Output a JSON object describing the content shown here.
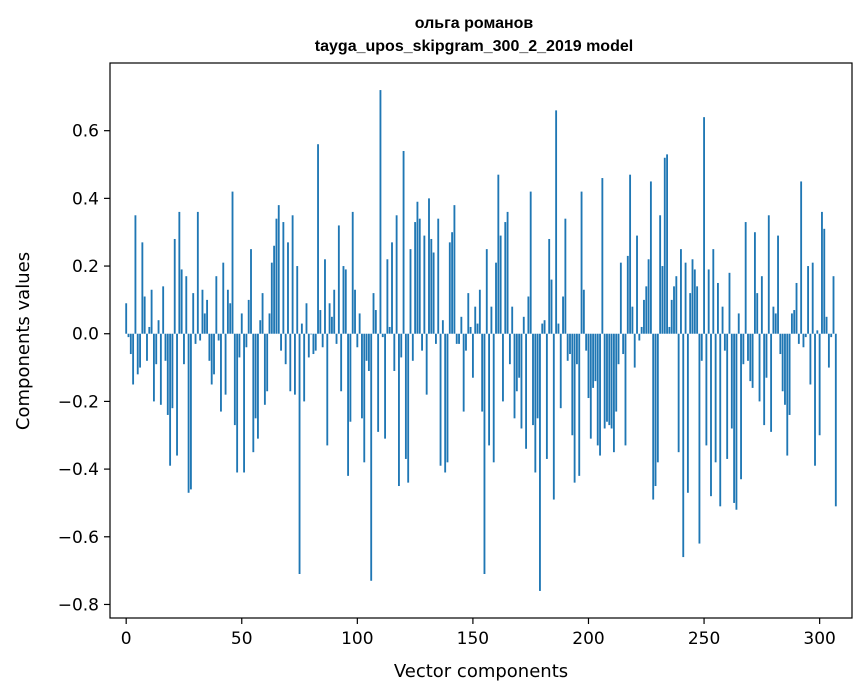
{
  "chart_data": {
    "type": "bar",
    "title_line1": "ольга романов",
    "title_line2": "tayga_upos_skipgram_300_2_2019 model",
    "xlabel": "Vector components",
    "ylabel": "Components values",
    "xlim": [
      -7,
      314
    ],
    "ylim": [
      -0.84,
      0.8
    ],
    "xticks": [
      0,
      50,
      100,
      150,
      200,
      250,
      300
    ],
    "yticks": [
      -0.8,
      -0.6,
      -0.4,
      -0.2,
      0.0,
      0.2,
      0.4,
      0.6
    ],
    "ytick_labels": [
      "−0.8",
      "−0.6",
      "−0.4",
      "−0.2",
      "0.0",
      "0.2",
      "0.4",
      "0.6"
    ],
    "bar_color": "#1f77b4",
    "grid": false,
    "legend": "none",
    "series": [
      {
        "values": [
          0.09,
          -0.01,
          -0.06,
          -0.15,
          0.35,
          -0.12,
          -0.1,
          0.27,
          0.11,
          -0.08,
          0.02,
          0.13,
          -0.2,
          -0.09,
          0.04,
          -0.21,
          0.14,
          -0.08,
          -0.24,
          -0.39,
          -0.22,
          0.28,
          -0.36,
          0.36,
          0.19,
          -0.09,
          0.17,
          -0.47,
          -0.46,
          0.12,
          -0.03,
          0.36,
          -0.02,
          0.13,
          0.06,
          0.1,
          -0.08,
          -0.15,
          -0.12,
          0.17,
          -0.02,
          -0.23,
          0.21,
          -0.18,
          0.13,
          0.09,
          0.42,
          -0.27,
          -0.41,
          -0.07,
          0.06,
          -0.41,
          -0.04,
          0.1,
          0.25,
          -0.35,
          -0.25,
          -0.31,
          0.04,
          0.12,
          -0.21,
          -0.17,
          0.06,
          0.21,
          0.26,
          0.34,
          0.38,
          -0.05,
          0.33,
          -0.09,
          0.27,
          -0.17,
          0.35,
          -0.18,
          0.2,
          -0.71,
          0.03,
          -0.2,
          0.09,
          -0.07,
          0.0,
          -0.06,
          -0.05,
          0.56,
          0.07,
          -0.04,
          0.22,
          -0.33,
          0.09,
          0.05,
          0.13,
          -0.03,
          0.32,
          -0.17,
          0.2,
          0.19,
          -0.42,
          -0.26,
          0.36,
          0.13,
          -0.04,
          0.06,
          -0.25,
          -0.38,
          -0.08,
          -0.11,
          -0.73,
          0.12,
          0.07,
          -0.29,
          0.72,
          -0.01,
          -0.31,
          0.22,
          0.02,
          0.27,
          -0.11,
          0.35,
          -0.45,
          -0.07,
          0.54,
          -0.37,
          -0.44,
          0.25,
          -0.08,
          0.33,
          0.39,
          0.34,
          -0.05,
          0.29,
          -0.18,
          0.4,
          0.28,
          0.24,
          -0.03,
          0.34,
          -0.39,
          0.04,
          -0.41,
          -0.38,
          0.27,
          0.3,
          0.38,
          -0.03,
          -0.03,
          0.05,
          -0.23,
          -0.05,
          0.12,
          0.02,
          -0.13,
          0.08,
          0.03,
          0.13,
          -0.23,
          -0.71,
          0.25,
          -0.33,
          0.08,
          -0.38,
          0.21,
          0.47,
          0.29,
          -0.2,
          0.33,
          0.36,
          -0.09,
          0.08,
          -0.25,
          -0.17,
          -0.13,
          -0.28,
          0.05,
          -0.34,
          0.11,
          0.42,
          -0.27,
          -0.41,
          -0.25,
          -0.76,
          0.03,
          0.04,
          -0.37,
          0.28,
          0.16,
          -0.49,
          0.66,
          0.03,
          -0.22,
          0.11,
          0.34,
          -0.08,
          -0.06,
          -0.3,
          -0.44,
          -0.09,
          -0.42,
          0.42,
          0.13,
          -0.05,
          -0.19,
          -0.31,
          -0.16,
          -0.14,
          -0.33,
          -0.36,
          0.46,
          -0.28,
          -0.26,
          -0.27,
          -0.28,
          -0.35,
          -0.23,
          -0.09,
          0.21,
          -0.06,
          -0.33,
          0.23,
          0.47,
          0.08,
          -0.1,
          0.29,
          -0.02,
          0.02,
          0.1,
          0.14,
          0.22,
          0.45,
          -0.49,
          -0.45,
          -0.38,
          0.35,
          0.2,
          0.52,
          0.53,
          0.02,
          0.1,
          0.14,
          0.17,
          -0.35,
          0.25,
          -0.66,
          0.21,
          -0.47,
          0.12,
          0.22,
          0.19,
          0.14,
          -0.62,
          -0.08,
          0.64,
          -0.33,
          0.19,
          -0.48,
          0.25,
          -0.38,
          0.15,
          -0.51,
          0.08,
          -0.05,
          -0.37,
          0.18,
          -0.28,
          -0.5,
          -0.52,
          0.06,
          -0.43,
          -0.09,
          0.33,
          -0.08,
          -0.14,
          -0.16,
          0.3,
          0.12,
          -0.2,
          0.17,
          -0.27,
          -0.13,
          0.35,
          -0.29,
          0.08,
          0.06,
          0.29,
          -0.06,
          -0.17,
          -0.21,
          -0.36,
          -0.24,
          0.06,
          0.07,
          0.15,
          -0.03,
          0.45,
          -0.04,
          -0.01,
          0.2,
          -0.15,
          0.21,
          -0.39,
          0.01,
          -0.3,
          0.36,
          0.31,
          0.05,
          -0.1,
          -0.01,
          0.17,
          -0.51
        ]
      }
    ]
  }
}
